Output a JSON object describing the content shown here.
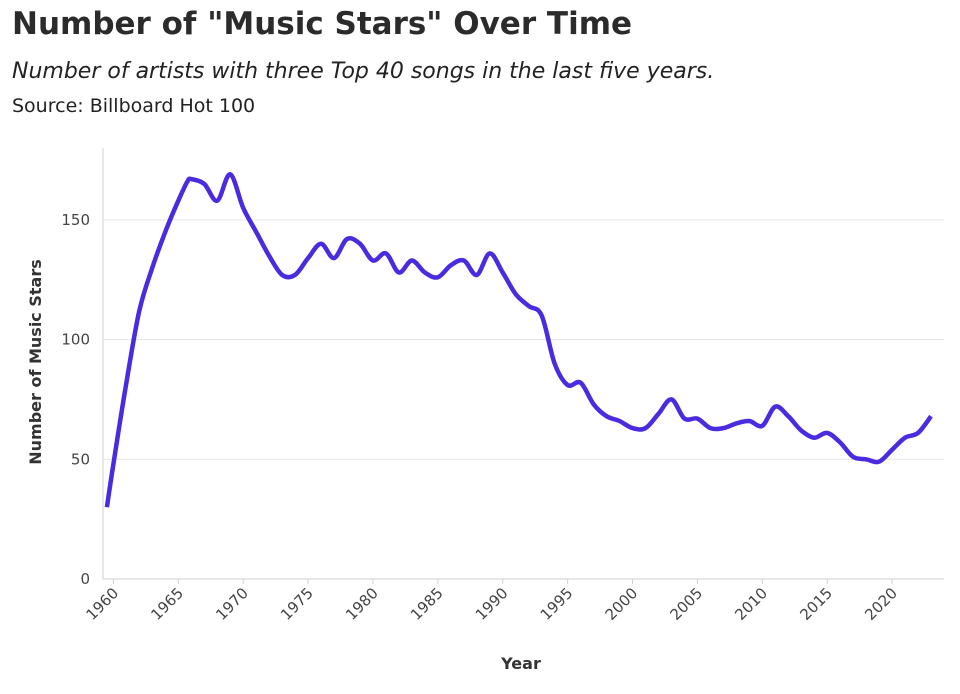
{
  "header": {
    "title": "Number of \"Music Stars\" Over Time",
    "subtitle": "Number of artists with three Top 40 songs in the last five years.",
    "source": "Source: Billboard Hot 100"
  },
  "colors": {
    "line": "#4a2be0",
    "grid": "#e6e6e6",
    "axis": "#d0d0d0",
    "text": "#444444"
  },
  "chart_data": {
    "type": "line",
    "title": "Number of \"Music Stars\" Over Time",
    "subtitle": "Number of artists with three Top 40 songs in the last five years.",
    "xlabel": "Year",
    "ylabel": "Number of Music Stars",
    "xlim": [
      1959.2,
      2024
    ],
    "ylim": [
      0,
      180
    ],
    "x_ticks": [
      1960,
      1965,
      1970,
      1975,
      1980,
      1985,
      1990,
      1995,
      2000,
      2005,
      2010,
      2015,
      2020
    ],
    "y_ticks": [
      0,
      50,
      100,
      150
    ],
    "grid": "horizontal",
    "series": [
      {
        "x": [
          1959.5,
          1960,
          1961,
          1962,
          1963,
          1964,
          1965,
          1965.7,
          1966,
          1967,
          1968,
          1969,
          1970,
          1971,
          1972,
          1973,
          1974,
          1975,
          1976,
          1977,
          1978,
          1979,
          1980,
          1981,
          1982,
          1983,
          1984,
          1985,
          1986,
          1987,
          1988,
          1989,
          1990,
          1991,
          1992,
          1993,
          1994,
          1995,
          1996,
          1997,
          1998,
          1999,
          2000,
          2001,
          2002,
          2003,
          2004,
          2005,
          2006,
          2007,
          2008,
          2009,
          2010,
          2011,
          2012,
          2013,
          2014,
          2015,
          2016,
          2017,
          2018,
          2019,
          2020,
          2021,
          2022,
          2023
        ],
        "values": [
          30,
          48,
          82,
          112,
          130,
          145,
          158,
          166,
          167,
          165,
          158,
          169,
          155,
          145,
          135,
          127,
          127,
          134,
          140,
          134,
          142,
          140,
          133,
          136,
          128,
          133,
          128,
          126,
          131,
          133,
          127,
          136,
          128,
          119,
          114,
          110,
          90,
          81,
          82,
          73,
          68,
          66,
          63,
          63,
          69,
          75,
          67,
          67,
          63,
          63,
          65,
          66,
          64,
          72,
          68,
          62,
          59,
          61,
          57,
          51,
          50,
          49,
          54,
          59,
          61,
          68
        ]
      }
    ]
  }
}
